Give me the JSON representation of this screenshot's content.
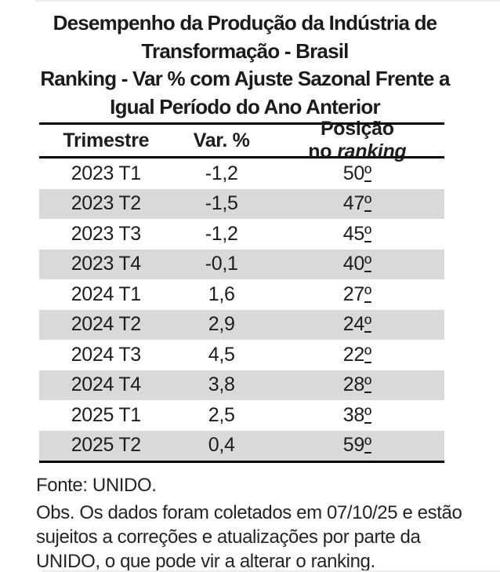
{
  "title_lines": [
    "Desempenho da Produção da Indústria de",
    "Transformação - Brasil",
    "Ranking - Var % com Ajuste Sazonal Frente a",
    "Igual Período do Ano Anterior"
  ],
  "table": {
    "header": {
      "trimestre": "Trimestre",
      "var": "Var. %",
      "posicao": "Posição no",
      "ranking_italic": "ranking"
    },
    "ordinal_indicator": "º",
    "rows": [
      {
        "trimestre": "2023 T1",
        "var": "-1,2",
        "pos": "50"
      },
      {
        "trimestre": "2023 T2",
        "var": "-1,5",
        "pos": "47"
      },
      {
        "trimestre": "2023 T3",
        "var": "-1,2",
        "pos": "45"
      },
      {
        "trimestre": "2023 T4",
        "var": "-0,1",
        "pos": "40"
      },
      {
        "trimestre": "2024 T1",
        "var": "1,6",
        "pos": "27"
      },
      {
        "trimestre": "2024 T2",
        "var": "2,9",
        "pos": "24"
      },
      {
        "trimestre": "2024 T3",
        "var": "4,5",
        "pos": "22"
      },
      {
        "trimestre": "2024 T4",
        "var": "3,8",
        "pos": "28"
      },
      {
        "trimestre": "2025 T1",
        "var": "2,5",
        "pos": "38"
      },
      {
        "trimestre": "2025 T2",
        "var": "0,4",
        "pos": "59"
      }
    ]
  },
  "footer": {
    "fonte": "Fonte: UNIDO.",
    "obs_lines": [
      "Obs. Os dados foram coletados em 07/10/25 e estão",
      "sujeitos a correções e atualizações por parte da",
      "UNIDO, o que pode vir a alterar o ranking."
    ]
  },
  "colors": {
    "row_alt": "#d9d9d9",
    "border": "#000000",
    "text": "#1d1d1d"
  },
  "chart_data": {
    "type": "table",
    "title": "Desempenho da Produção da Indústria de Transformação - Brasil | Ranking - Var % com Ajuste Sazonal Frente a Igual Período do Ano Anterior",
    "columns": [
      "Trimestre",
      "Var. %",
      "Posição no ranking"
    ],
    "categories": [
      "2023 T1",
      "2023 T2",
      "2023 T3",
      "2023 T4",
      "2024 T1",
      "2024 T2",
      "2024 T3",
      "2024 T4",
      "2025 T1",
      "2025 T2"
    ],
    "series": [
      {
        "name": "Var. %",
        "values": [
          -1.2,
          -1.5,
          -1.2,
          -0.1,
          1.6,
          2.9,
          4.5,
          3.8,
          2.5,
          0.4
        ]
      },
      {
        "name": "Posição no ranking",
        "values": [
          50,
          47,
          45,
          40,
          27,
          24,
          22,
          28,
          38,
          59
        ]
      }
    ],
    "source": "Fonte: UNIDO.",
    "note": "Obs. Os dados foram coletados em 07/10/25 e estão sujeitos a correções e atualizações por parte da UNIDO, o que pode vir a alterar o ranking."
  }
}
